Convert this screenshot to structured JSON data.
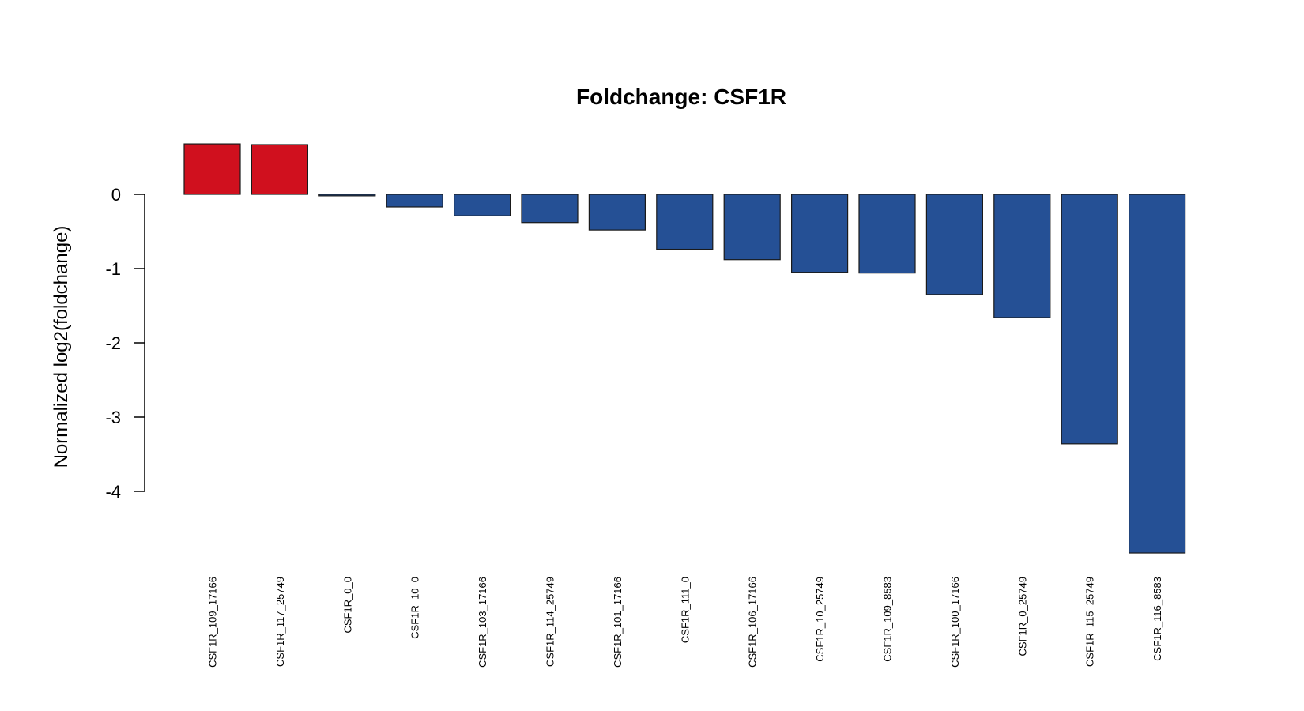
{
  "chart_data": {
    "type": "bar",
    "title": "Foldchange: CSF1R",
    "xlabel": "",
    "ylabel": "Normalized log2(foldchange)",
    "ylim": [
      -4.8,
      0.7
    ],
    "yticks": [
      0,
      -1,
      -2,
      -3,
      -4
    ],
    "grid": false,
    "categories": [
      "CSF1R_109_17166",
      "CSF1R_117_25749",
      "CSF1R_0_0",
      "CSF1R_10_0",
      "CSF1R_103_17166",
      "CSF1R_114_25749",
      "CSF1R_101_17166",
      "CSF1R_111_0",
      "CSF1R_106_17166",
      "CSF1R_10_25749",
      "CSF1R_109_8583",
      "CSF1R_100_17166",
      "CSF1R_0_25749",
      "CSF1R_115_25749",
      "CSF1R_116_8583"
    ],
    "values": [
      0.68,
      0.67,
      -0.02,
      -0.17,
      -0.29,
      -0.38,
      -0.48,
      -0.74,
      -0.88,
      -1.05,
      -1.06,
      -1.35,
      -1.66,
      -3.36,
      -4.83
    ],
    "colors": {
      "positive": "#d0101e",
      "negative": "#255095",
      "stroke": "#1a1a1a"
    }
  }
}
